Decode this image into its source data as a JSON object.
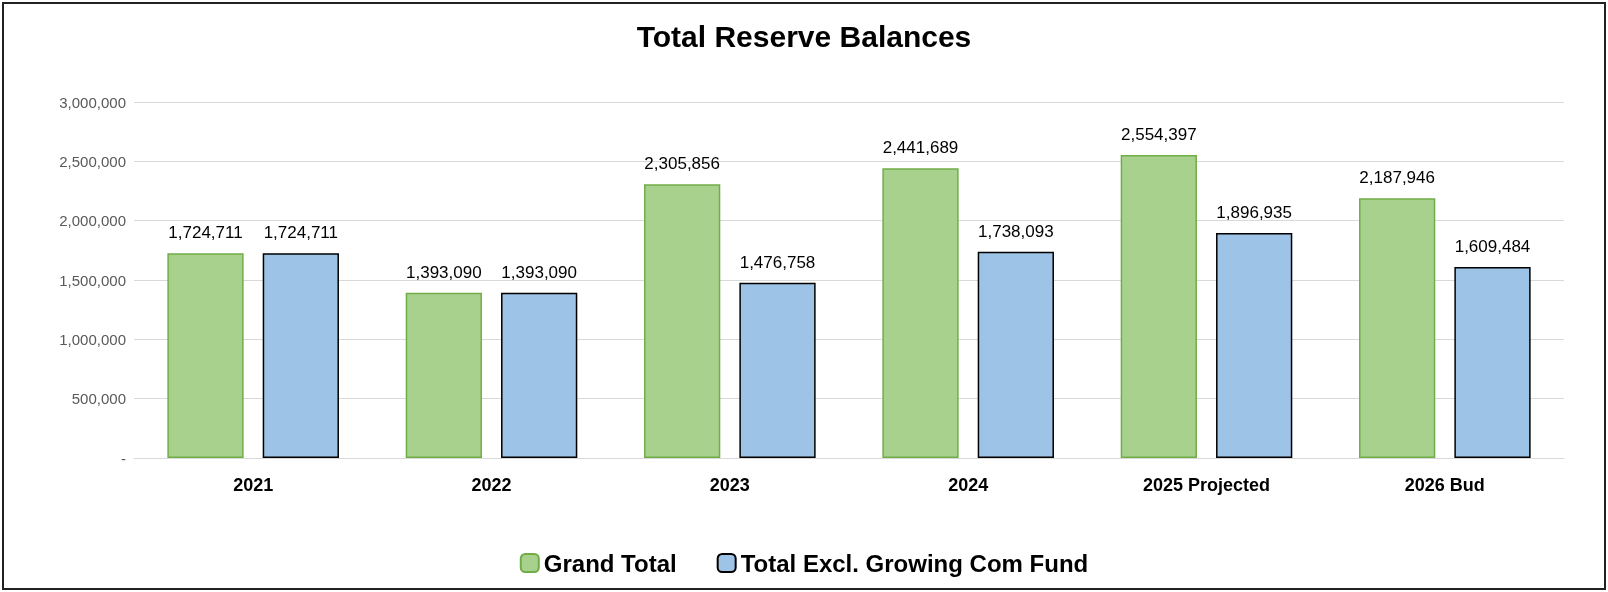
{
  "chart_data": {
    "type": "bar",
    "title": "Total Reserve Balances",
    "categories": [
      "2021",
      "2022",
      "2023",
      "2024",
      "2025 Projected",
      "2026 Bud"
    ],
    "series": [
      {
        "name": "Grand Total",
        "color": "#a9d18e",
        "values": [
          1724711,
          1393090,
          2305856,
          2441689,
          2554397,
          2187946
        ],
        "value_labels": [
          "1,724,711",
          "1,393,090",
          "2,305,856",
          "2,441,689",
          "2,554,397",
          "2,187,946"
        ]
      },
      {
        "name": "Total Excl. Growing Com Fund",
        "color": "#9dc3e6",
        "values": [
          1724711,
          1393090,
          1476758,
          1738093,
          1896935,
          1609484
        ],
        "value_labels": [
          "1,724,711",
          "1,393,090",
          "1,476,758",
          "1,738,093",
          "1,896,935",
          "1,609,484"
        ]
      }
    ],
    "ylim": [
      0,
      3000000
    ],
    "yticks": [
      {
        "value": 0,
        "label": "-"
      },
      {
        "value": 500000,
        "label": "500,000"
      },
      {
        "value": 1000000,
        "label": "1,000,000"
      },
      {
        "value": 1500000,
        "label": "1,500,000"
      },
      {
        "value": 2000000,
        "label": "2,000,000"
      },
      {
        "value": 2500000,
        "label": "2,500,000"
      },
      {
        "value": 3000000,
        "label": "3,000,000"
      }
    ],
    "grid": "y",
    "legend": "bottom"
  }
}
